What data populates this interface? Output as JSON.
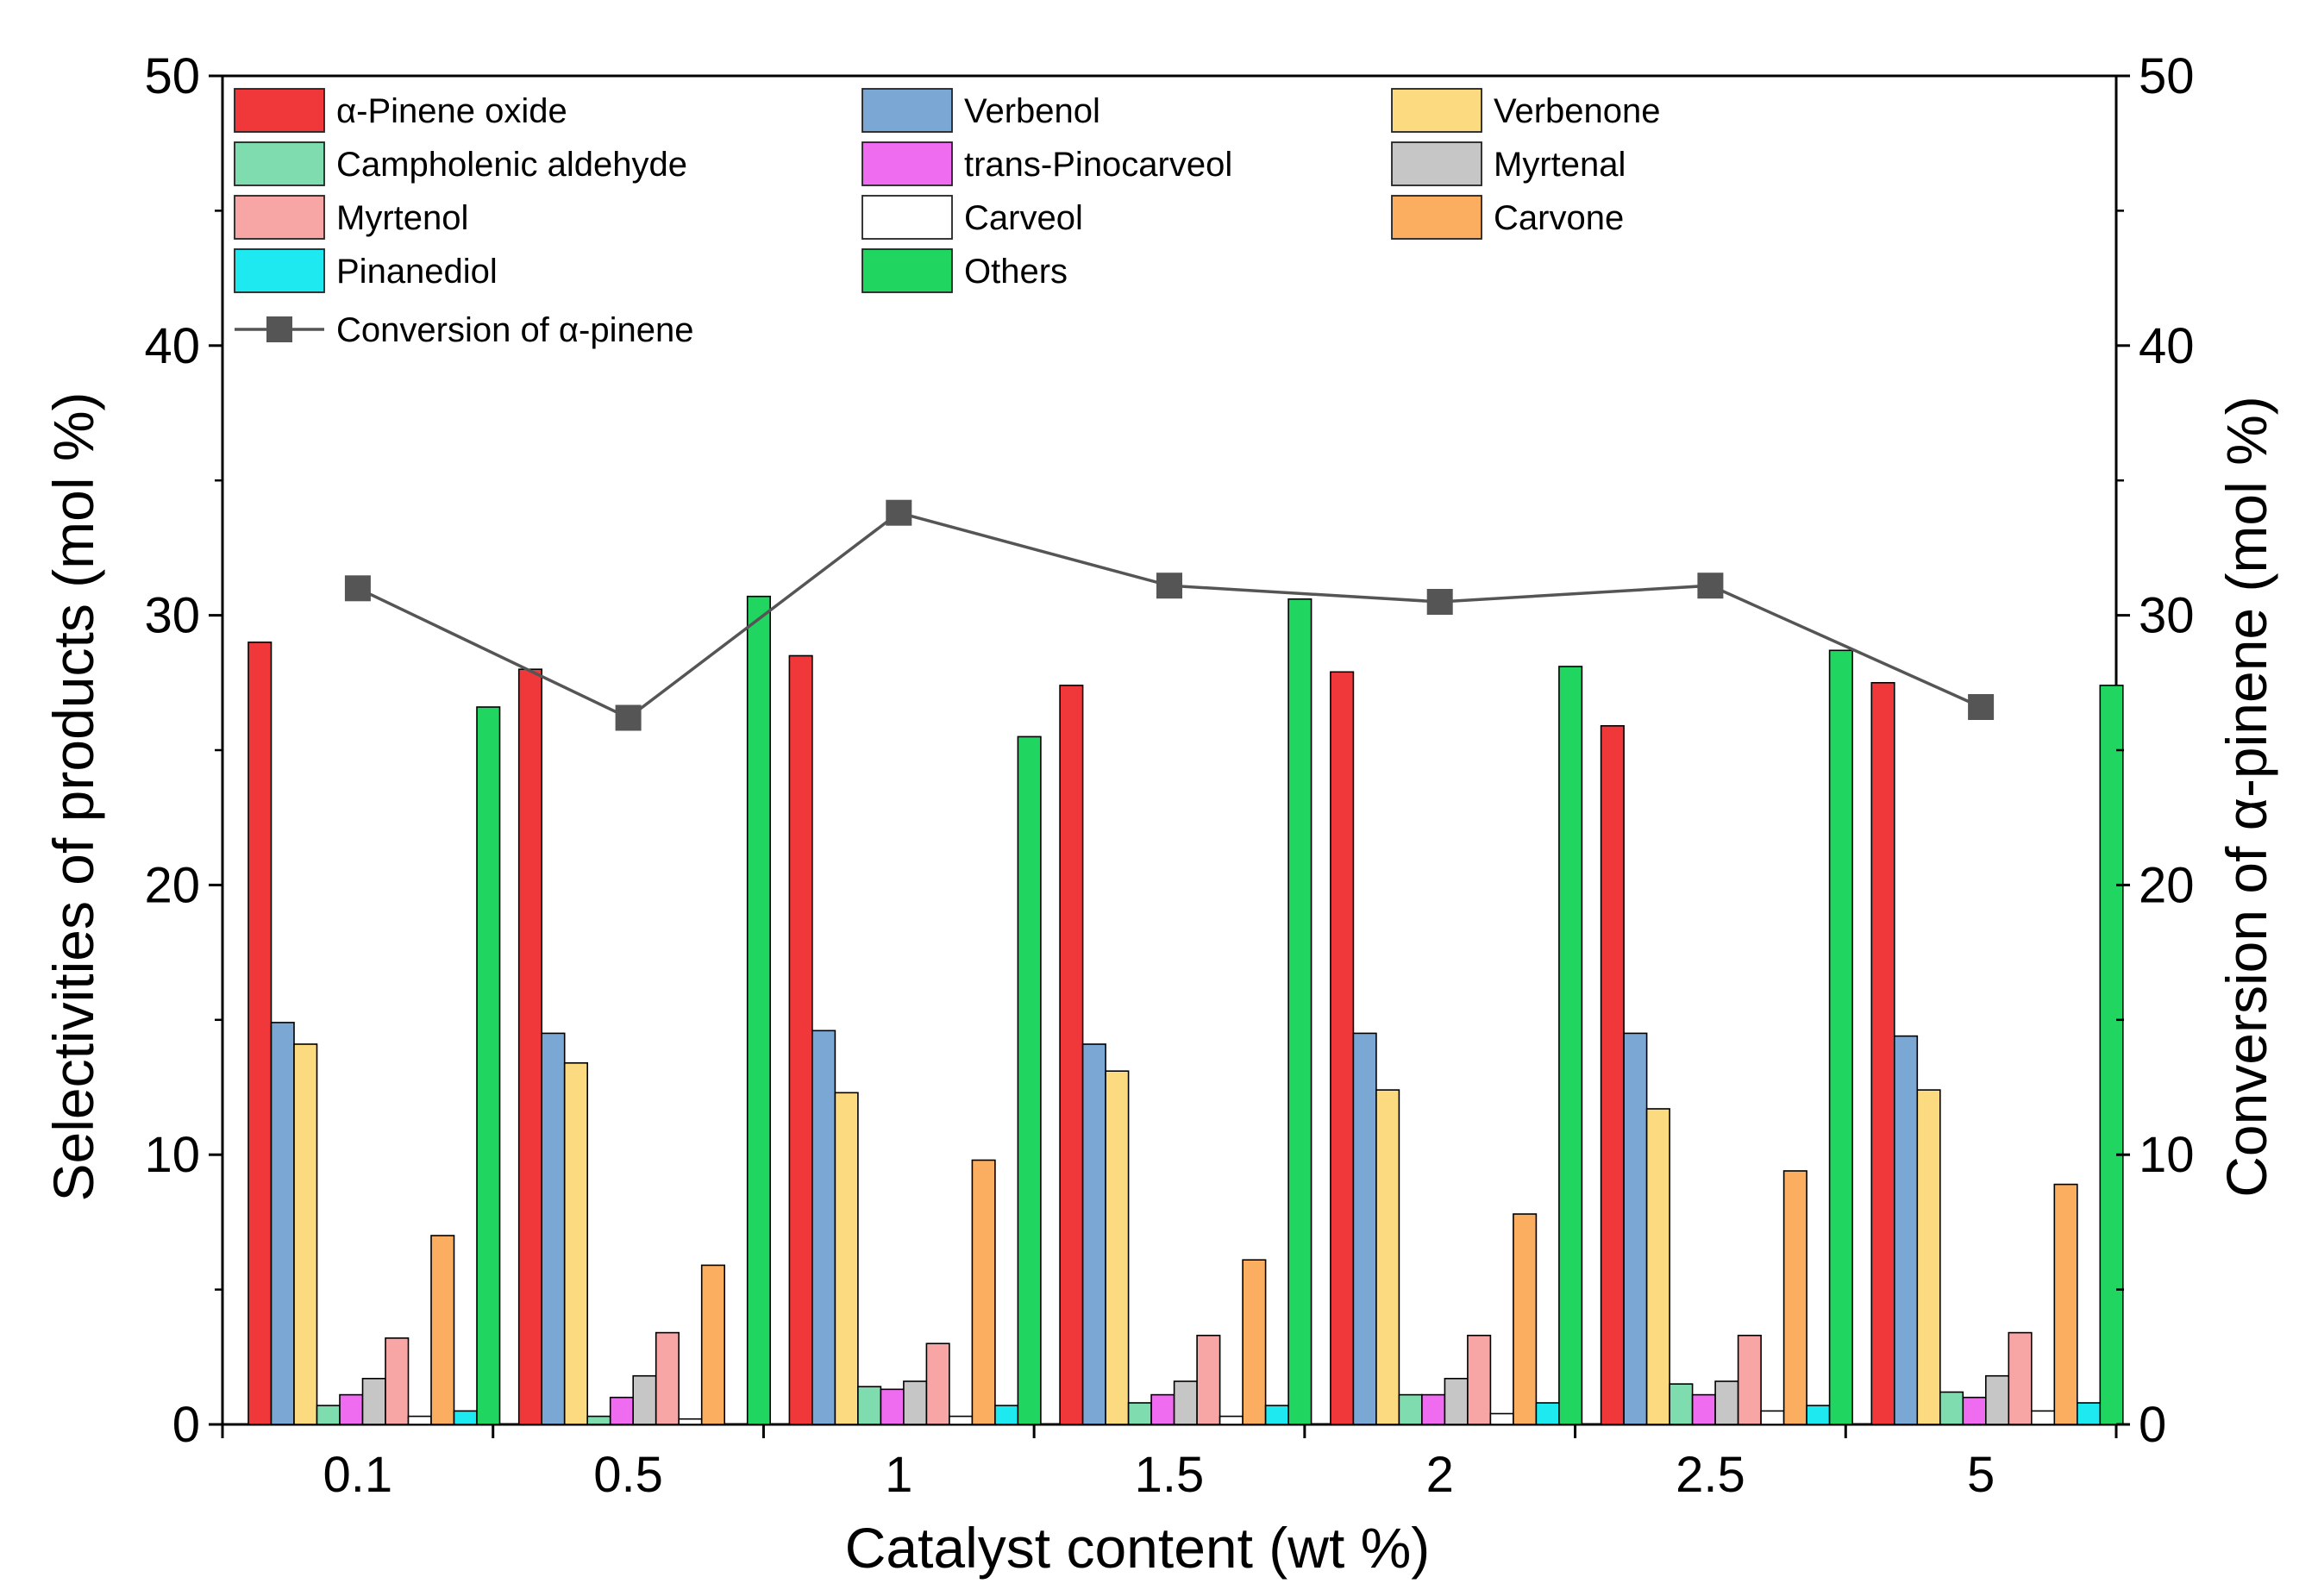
{
  "chart_data": {
    "type": "bar",
    "title": "",
    "xlabel": "Catalyst content (wt %)",
    "ylabel": "Selectivities of products (mol %)",
    "y2label": "Conversion of α-pinene (mol %)",
    "ylim": [
      0,
      50
    ],
    "y2lim": [
      0,
      50
    ],
    "yticks": [
      "0",
      "10",
      "20",
      "30",
      "40",
      "50"
    ],
    "categories": [
      "0.1",
      "0.5",
      "1",
      "1.5",
      "2",
      "2.5",
      "5"
    ],
    "legend_position": "top-left",
    "grid": false,
    "series": [
      {
        "name": "α-Pinene oxide",
        "color": "#f0383a",
        "values": [
          29.0,
          28.0,
          28.5,
          27.4,
          27.9,
          25.9,
          27.5
        ]
      },
      {
        "name": "Verbenol",
        "color": "#7ba7d4",
        "values": [
          14.9,
          14.5,
          14.6,
          14.1,
          14.5,
          14.5,
          14.4
        ]
      },
      {
        "name": "Verbenone",
        "color": "#fbda80",
        "values": [
          14.1,
          13.4,
          12.3,
          13.1,
          12.4,
          11.7,
          12.4
        ]
      },
      {
        "name": "Campholenic aldehyde",
        "color": "#7fdcae",
        "values": [
          0.7,
          0.3,
          1.4,
          0.8,
          1.1,
          1.5,
          1.2
        ]
      },
      {
        "name": "trans-Pinocarveol",
        "color": "#ef6bef",
        "values": [
          1.1,
          1.0,
          1.3,
          1.1,
          1.1,
          1.1,
          1.0
        ]
      },
      {
        "name": "Myrtenal",
        "color": "#c6c6c6",
        "values": [
          1.7,
          1.8,
          1.6,
          1.6,
          1.7,
          1.6,
          1.8
        ]
      },
      {
        "name": "Myrtenol",
        "color": "#f7a5a5",
        "values": [
          3.2,
          3.4,
          3.0,
          3.3,
          3.3,
          3.3,
          3.4
        ]
      },
      {
        "name": "Carveol",
        "color": "#ffffff",
        "values": [
          0.3,
          0.2,
          0.3,
          0.3,
          0.4,
          0.5,
          0.5
        ]
      },
      {
        "name": "Carvone",
        "color": "#fbae60",
        "values": [
          7.0,
          5.9,
          9.8,
          6.1,
          7.8,
          9.4,
          8.9
        ]
      },
      {
        "name": "Pinanediol",
        "color": "#1ee9f0",
        "values": [
          0.5,
          0.0,
          0.7,
          0.7,
          0.8,
          0.7,
          0.8
        ]
      },
      {
        "name": "Others",
        "color": "#21d561",
        "values": [
          26.6,
          30.7,
          25.5,
          30.6,
          28.1,
          28.7,
          27.4
        ]
      }
    ],
    "line_series": {
      "name": "Conversion of α-pinene",
      "axis": "right",
      "color": "#555555",
      "values": [
        31.0,
        26.2,
        33.8,
        31.1,
        30.5,
        31.1,
        26.6
      ]
    }
  }
}
